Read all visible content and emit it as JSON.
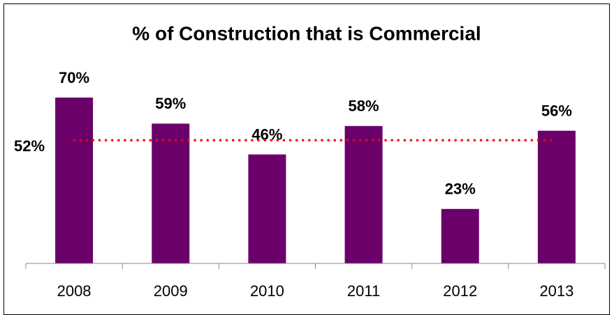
{
  "chart_data": {
    "type": "bar",
    "title": "% of Construction that is Commercial",
    "categories": [
      "2008",
      "2009",
      "2010",
      "2011",
      "2012",
      "2013"
    ],
    "values": [
      70,
      59,
      46,
      58,
      23,
      56
    ],
    "value_labels": [
      "70%",
      "59%",
      "46%",
      "58%",
      "23%",
      "56%"
    ],
    "color": "#6b006b",
    "ylim": [
      0,
      100
    ],
    "reference_line": {
      "value": 52,
      "label": "52%",
      "color": "#ff0000"
    }
  }
}
